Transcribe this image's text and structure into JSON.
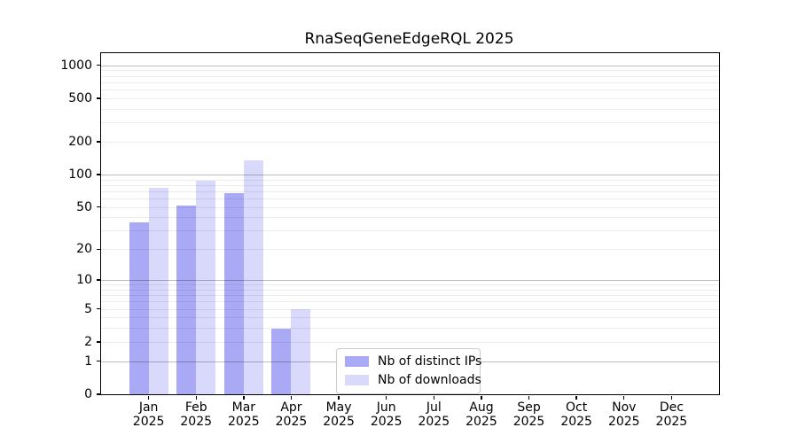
{
  "title": "RnaSeqGeneEdgeRQL 2025",
  "chart_data": {
    "type": "bar",
    "title": "RnaSeqGeneEdgeRQL 2025",
    "x": {
      "categories": [
        "Jan",
        "Feb",
        "Mar",
        "Apr",
        "May",
        "Jun",
        "Jul",
        "Aug",
        "Sep",
        "Oct",
        "Nov",
        "Dec"
      ],
      "year_label": "2025"
    },
    "series": [
      {
        "name": "Nb of distinct IPs",
        "key": "distinct-ips",
        "color": "#a9a9f6",
        "values": [
          36,
          52,
          67,
          3,
          0,
          0,
          0,
          0,
          0,
          0,
          0,
          0
        ]
      },
      {
        "name": "Nb of downloads",
        "key": "downloads",
        "color": "#d9d9fb",
        "values": [
          76,
          87,
          135,
          5,
          0,
          0,
          0,
          0,
          0,
          0,
          0,
          0
        ]
      }
    ],
    "y_axis": {
      "scale": "log1p",
      "ticks": [
        0,
        1,
        2,
        5,
        10,
        20,
        50,
        100,
        200,
        500,
        1000
      ],
      "major_gridlines": [
        1,
        10,
        100,
        1000
      ],
      "minor_gridlines": [
        2,
        3,
        4,
        5,
        6,
        7,
        8,
        9,
        20,
        30,
        40,
        50,
        60,
        70,
        80,
        90,
        200,
        300,
        400,
        500,
        600,
        700,
        800,
        900
      ],
      "range": [
        0,
        1290
      ]
    },
    "legend": {
      "position": "lower-center",
      "entries": [
        "Nb of distinct IPs",
        "Nb of downloads"
      ]
    },
    "grid": true
  },
  "colors": {
    "bar_distinct_ips": "#a9a9f6",
    "bar_downloads": "#d9d9fb",
    "major_grid": "#bdbdbd",
    "minor_grid": "#ededed",
    "axis": "#000000",
    "background": "#ffffff"
  }
}
